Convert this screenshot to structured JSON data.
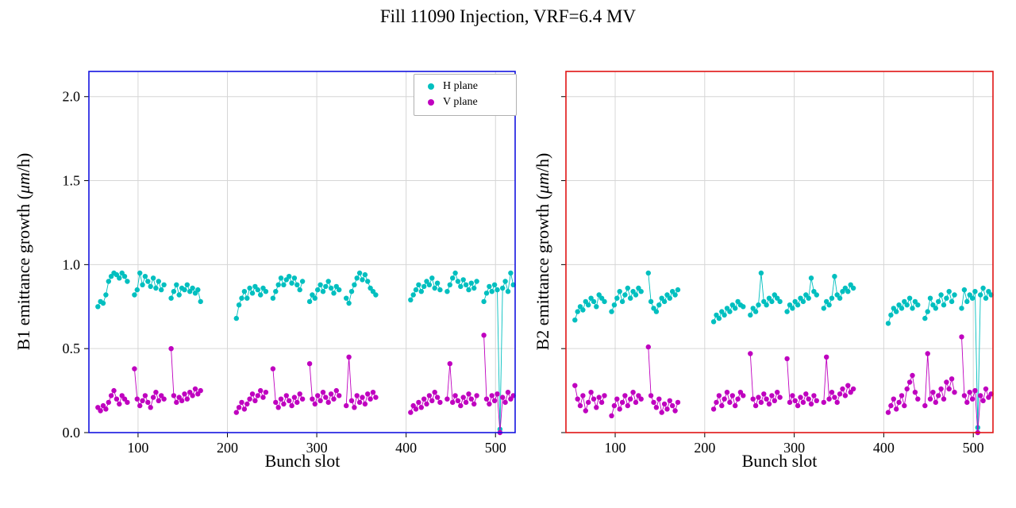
{
  "title": "Fill 11090 Injection, VRF=6.4 MV",
  "chart_data": [
    {
      "type": "scatter",
      "id": "b1",
      "xlabel": "Bunch slot",
      "ylabel": {
        "prefix": "B1 emittance growth (",
        "math": "μm",
        "suffix": "/h)"
      },
      "xlim": [
        45,
        522
      ],
      "ylim": [
        0,
        2.15
      ],
      "xticks": [
        100,
        200,
        300,
        400,
        500
      ],
      "yticks": [
        {
          "v": 0,
          "label": "0.0"
        },
        {
          "v": 0.5,
          "label": "0.5"
        },
        {
          "v": 1,
          "label": "1.0"
        },
        {
          "v": 1.5,
          "label": "1.5"
        },
        {
          "v": 2,
          "label": "2.0"
        }
      ],
      "show_ytick_labels": true,
      "spine_color": "#1414e0",
      "grid_color": "#d6d6d6",
      "legend": {
        "entries": [
          {
            "label": "H plane",
            "color": "#00bfbf"
          },
          {
            "label": "V plane",
            "color": "#bf00bf"
          }
        ],
        "position": "upper right inside"
      },
      "series": [
        {
          "name": "H plane",
          "color": "#00bfbf",
          "trains": [
            {
              "start": 55,
              "step": 3,
              "y": [
                0.75,
                0.78,
                0.77,
                0.82,
                0.9,
                0.93,
                0.95,
                0.94,
                0.92,
                0.95,
                0.93,
                0.9
              ]
            },
            {
              "start": 96,
              "step": 3,
              "y": [
                0.82,
                0.85,
                0.95,
                0.88,
                0.93,
                0.9,
                0.87,
                0.92,
                0.86,
                0.9,
                0.85,
                0.88
              ]
            },
            {
              "start": 137,
              "step": 3,
              "y": [
                0.8,
                0.84,
                0.88,
                0.82,
                0.86,
                0.85,
                0.88,
                0.84,
                0.86,
                0.83,
                0.85,
                0.78
              ]
            },
            {
              "start": 210,
              "step": 3,
              "y": [
                0.68,
                0.76,
                0.8,
                0.84,
                0.8,
                0.86,
                0.83,
                0.87,
                0.85,
                0.82,
                0.86,
                0.84
              ]
            },
            {
              "start": 251,
              "step": 3,
              "y": [
                0.8,
                0.84,
                0.88,
                0.92,
                0.88,
                0.91,
                0.93,
                0.89,
                0.92,
                0.88,
                0.85,
                0.9
              ]
            },
            {
              "start": 292,
              "step": 3,
              "y": [
                0.78,
                0.82,
                0.8,
                0.85,
                0.88,
                0.84,
                0.87,
                0.9,
                0.86,
                0.83,
                0.87,
                0.85
              ]
            },
            {
              "start": 333,
              "step": 3,
              "y": [
                0.8,
                0.77,
                0.84,
                0.88,
                0.92,
                0.95,
                0.91,
                0.94,
                0.9,
                0.86,
                0.84,
                0.82
              ]
            },
            {
              "start": 405,
              "step": 3,
              "y": [
                0.79,
                0.82,
                0.85,
                0.88,
                0.84,
                0.87,
                0.9,
                0.88,
                0.92,
                0.86,
                0.89,
                0.85
              ]
            },
            {
              "start": 446,
              "step": 3,
              "y": [
                0.84,
                0.88,
                0.92,
                0.95,
                0.9,
                0.87,
                0.91,
                0.88,
                0.85,
                0.89,
                0.86,
                0.9
              ]
            },
            {
              "start": 487,
              "step": 3,
              "y": [
                0.78,
                0.83,
                0.87,
                0.84,
                0.88,
                0.85,
                0.02,
                0.86,
                0.9,
                0.84,
                0.95,
                0.88
              ]
            }
          ]
        },
        {
          "name": "V plane",
          "color": "#bf00bf",
          "trains": [
            {
              "start": 55,
              "step": 3,
              "y": [
                0.15,
                0.13,
                0.16,
                0.14,
                0.18,
                0.22,
                0.25,
                0.2,
                0.17,
                0.22,
                0.2,
                0.18
              ]
            },
            {
              "start": 96,
              "step": 3,
              "y": [
                0.38,
                0.2,
                0.16,
                0.19,
                0.22,
                0.18,
                0.15,
                0.21,
                0.24,
                0.19,
                0.22,
                0.2
              ]
            },
            {
              "start": 137,
              "step": 3,
              "y": [
                0.5,
                0.22,
                0.18,
                0.21,
                0.19,
                0.23,
                0.2,
                0.24,
                0.22,
                0.26,
                0.23,
                0.25
              ]
            },
            {
              "start": 210,
              "step": 3,
              "y": [
                0.12,
                0.15,
                0.18,
                0.14,
                0.17,
                0.2,
                0.23,
                0.19,
                0.22,
                0.25,
                0.21,
                0.24
              ]
            },
            {
              "start": 251,
              "step": 3,
              "y": [
                0.38,
                0.18,
                0.15,
                0.2,
                0.17,
                0.22,
                0.19,
                0.16,
                0.21,
                0.18,
                0.23,
                0.2
              ]
            },
            {
              "start": 292,
              "step": 3,
              "y": [
                0.41,
                0.2,
                0.17,
                0.22,
                0.19,
                0.24,
                0.21,
                0.18,
                0.23,
                0.2,
                0.25,
                0.22
              ]
            },
            {
              "start": 333,
              "step": 3,
              "y": [
                0.16,
                0.45,
                0.19,
                0.15,
                0.22,
                0.18,
                0.21,
                0.17,
                0.23,
                0.2,
                0.24,
                0.21
              ]
            },
            {
              "start": 405,
              "step": 3,
              "y": [
                0.12,
                0.16,
                0.14,
                0.18,
                0.15,
                0.2,
                0.17,
                0.22,
                0.19,
                0.24,
                0.21,
                0.18
              ]
            },
            {
              "start": 446,
              "step": 3,
              "y": [
                0.2,
                0.41,
                0.18,
                0.22,
                0.19,
                0.16,
                0.21,
                0.18,
                0.23,
                0.2,
                0.17,
                0.22
              ]
            },
            {
              "start": 487,
              "step": 3,
              "y": [
                0.58,
                0.2,
                0.17,
                0.22,
                0.19,
                0.23,
                0.0,
                0.21,
                0.18,
                0.24,
                0.2,
                0.22
              ]
            }
          ]
        }
      ]
    },
    {
      "type": "scatter",
      "id": "b2",
      "xlabel": "Bunch slot",
      "ylabel": {
        "prefix": "B2 emittance growth (",
        "math": "μm",
        "suffix": "/h)"
      },
      "xlim": [
        45,
        522
      ],
      "ylim": [
        0,
        2.15
      ],
      "xticks": [
        100,
        200,
        300,
        400,
        500
      ],
      "yticks": [
        {
          "v": 0,
          "label": "0.0"
        },
        {
          "v": 0.5,
          "label": "0.5"
        },
        {
          "v": 1,
          "label": "1.0"
        },
        {
          "v": 1.5,
          "label": "1.5"
        },
        {
          "v": 2,
          "label": "2.0"
        }
      ],
      "show_ytick_labels": false,
      "spine_color": "#e01414",
      "grid_color": "#d6d6d6",
      "series": [
        {
          "name": "H plane",
          "color": "#00bfbf",
          "trains": [
            {
              "start": 55,
              "step": 3,
              "y": [
                0.67,
                0.72,
                0.75,
                0.73,
                0.78,
                0.76,
                0.8,
                0.78,
                0.75,
                0.82,
                0.8,
                0.78
              ]
            },
            {
              "start": 96,
              "step": 3,
              "y": [
                0.72,
                0.76,
                0.8,
                0.84,
                0.78,
                0.82,
                0.86,
                0.8,
                0.84,
                0.82,
                0.86,
                0.84
              ]
            },
            {
              "start": 137,
              "step": 3,
              "y": [
                0.95,
                0.78,
                0.74,
                0.72,
                0.76,
                0.8,
                0.78,
                0.82,
                0.8,
                0.84,
                0.82,
                0.85
              ]
            },
            {
              "start": 210,
              "step": 3,
              "y": [
                0.66,
                0.7,
                0.68,
                0.72,
                0.7,
                0.74,
                0.72,
                0.76,
                0.74,
                0.78,
                0.76,
                0.75
              ]
            },
            {
              "start": 251,
              "step": 3,
              "y": [
                0.7,
                0.74,
                0.72,
                0.76,
                0.95,
                0.78,
                0.76,
                0.8,
                0.78,
                0.82,
                0.8,
                0.78
              ]
            },
            {
              "start": 292,
              "step": 3,
              "y": [
                0.72,
                0.76,
                0.74,
                0.78,
                0.76,
                0.8,
                0.78,
                0.82,
                0.8,
                0.92,
                0.84,
                0.82
              ]
            },
            {
              "start": 333,
              "step": 3,
              "y": [
                0.74,
                0.78,
                0.76,
                0.8,
                0.93,
                0.82,
                0.8,
                0.84,
                0.86,
                0.84,
                0.88,
                0.86
              ]
            },
            {
              "start": 405,
              "step": 3,
              "y": [
                0.65,
                0.7,
                0.74,
                0.72,
                0.76,
                0.74,
                0.78,
                0.76,
                0.8,
                0.74,
                0.78,
                0.76
              ]
            },
            {
              "start": 446,
              "step": 3,
              "y": [
                0.68,
                0.72,
                0.8,
                0.76,
                0.74,
                0.78,
                0.82,
                0.76,
                0.8,
                0.84,
                0.78,
                0.82
              ]
            },
            {
              "start": 487,
              "step": 3,
              "y": [
                0.74,
                0.85,
                0.78,
                0.82,
                0.8,
                0.84,
                0.03,
                0.82,
                0.86,
                0.8,
                0.84,
                0.82
              ]
            }
          ]
        },
        {
          "name": "V plane",
          "color": "#bf00bf",
          "trains": [
            {
              "start": 55,
              "step": 3,
              "y": [
                0.28,
                0.2,
                0.16,
                0.22,
                0.13,
                0.18,
                0.24,
                0.2,
                0.15,
                0.21,
                0.18,
                0.22
              ]
            },
            {
              "start": 96,
              "step": 3,
              "y": [
                0.1,
                0.16,
                0.2,
                0.14,
                0.18,
                0.22,
                0.16,
                0.2,
                0.24,
                0.18,
                0.22,
                0.2
              ]
            },
            {
              "start": 137,
              "step": 3,
              "y": [
                0.51,
                0.22,
                0.18,
                0.15,
                0.2,
                0.12,
                0.17,
                0.14,
                0.19,
                0.16,
                0.13,
                0.18
              ]
            },
            {
              "start": 210,
              "step": 3,
              "y": [
                0.14,
                0.18,
                0.22,
                0.16,
                0.2,
                0.24,
                0.18,
                0.22,
                0.16,
                0.2,
                0.24,
                0.22
              ]
            },
            {
              "start": 251,
              "step": 3,
              "y": [
                0.47,
                0.2,
                0.16,
                0.21,
                0.18,
                0.23,
                0.2,
                0.17,
                0.22,
                0.19,
                0.24,
                0.21
              ]
            },
            {
              "start": 292,
              "step": 3,
              "y": [
                0.44,
                0.18,
                0.22,
                0.19,
                0.16,
                0.21,
                0.18,
                0.23,
                0.2,
                0.17,
                0.22,
                0.19
              ]
            },
            {
              "start": 333,
              "step": 3,
              "y": [
                0.18,
                0.45,
                0.2,
                0.24,
                0.21,
                0.18,
                0.23,
                0.26,
                0.22,
                0.28,
                0.24,
                0.26
              ]
            },
            {
              "start": 405,
              "step": 3,
              "y": [
                0.12,
                0.16,
                0.2,
                0.14,
                0.18,
                0.22,
                0.16,
                0.26,
                0.3,
                0.34,
                0.24,
                0.2
              ]
            },
            {
              "start": 446,
              "step": 3,
              "y": [
                0.16,
                0.47,
                0.2,
                0.24,
                0.18,
                0.22,
                0.26,
                0.2,
                0.3,
                0.26,
                0.32,
                0.24
              ]
            },
            {
              "start": 487,
              "step": 3,
              "y": [
                0.57,
                0.22,
                0.18,
                0.24,
                0.2,
                0.25,
                0.0,
                0.22,
                0.19,
                0.26,
                0.21,
                0.23
              ]
            }
          ]
        }
      ]
    }
  ]
}
